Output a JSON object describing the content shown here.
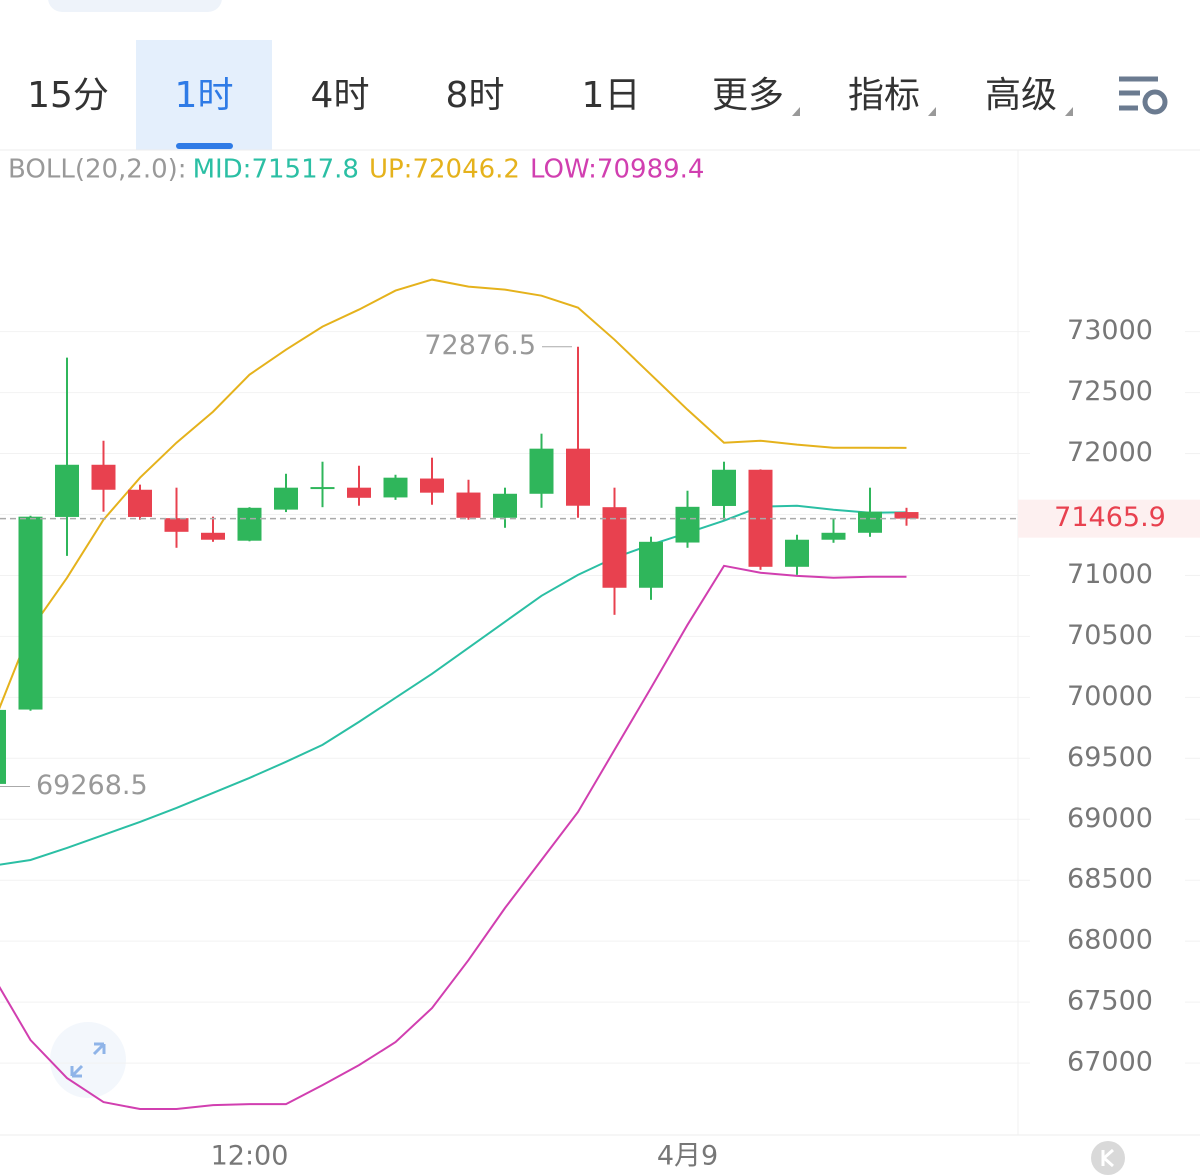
{
  "tabs": {
    "items": [
      "15分",
      "1时",
      "4时",
      "8时",
      "1日",
      "更多",
      "指标",
      "高级"
    ],
    "active": 1
  },
  "chart_data": {
    "type": "candlestick",
    "indicator": "BOLL(20,2.0):",
    "x": [
      null,
      null,
      null,
      null,
      null,
      null,
      null,
      "12:00",
      null,
      null,
      null,
      null,
      null,
      null,
      null,
      null,
      null,
      null,
      null,
      "4月9",
      null,
      null,
      null,
      null,
      null,
      null
    ],
    "open": [
      69290,
      69900,
      71480,
      71908,
      71703,
      71470,
      71350,
      71285,
      71540,
      71715,
      71720,
      71640,
      71795,
      71680,
      71473,
      71670,
      72040,
      71560,
      70899,
      71270,
      71570,
      71867,
      71071,
      71293,
      71350,
      71520
    ],
    "high": [
      69950,
      71490,
      72787,
      72105,
      71745,
      71720,
      71482,
      71560,
      71834,
      71933,
      71900,
      71826,
      71966,
      71785,
      71720,
      72163,
      72876.5,
      71720,
      71318,
      71695,
      71933,
      71870,
      71334,
      71465,
      71720,
      71555
    ],
    "low": [
      69268.5,
      69890,
      71161,
      71523,
      71457,
      71227,
      71276,
      71280,
      71520,
      71560,
      71572,
      71620,
      71580,
      71457,
      71391,
      71555,
      71473,
      70677,
      70800,
      71227,
      71457,
      71046,
      71005,
      71268,
      71317,
      71408
    ],
    "close": [
      69897,
      71482,
      71908,
      71703,
      71480,
      71358,
      71293,
      71555,
      71720,
      71725,
      71637,
      71802,
      71679,
      71473,
      71670,
      72040,
      71572,
      70899,
      71276,
      71563,
      71867,
      71071,
      71293,
      71350,
      71523,
      71465.9
    ],
    "up_color": "#2fb65b",
    "down_color": "#e8414f",
    "series": [
      {
        "name": "MID:71517.8",
        "color": "#2bbfa4",
        "values": [
          68620,
          68666,
          68765,
          68871,
          68978,
          69093,
          69216,
          69339,
          69471,
          69610,
          69799,
          69996,
          70193,
          70406,
          70620,
          70833,
          71005,
          71145,
          71252,
          71350,
          71449,
          71564,
          71572,
          71539,
          71514,
          71517.8
        ]
      },
      {
        "name": "UP:72046.2",
        "color": "#e5b21c",
        "values": [
          69800,
          70554,
          70981,
          71457,
          71802,
          72089,
          72343,
          72647,
          72852,
          73041,
          73181,
          73337,
          73427,
          73369,
          73345,
          73295,
          73197,
          72934,
          72647,
          72360,
          72089,
          72105,
          72073,
          72048,
          72048,
          72046.2
        ]
      },
      {
        "name": "LOW:70989.4",
        "color": "#d13fb0",
        "values": [
          67700,
          67189,
          66877,
          66680,
          66623,
          66623,
          66655,
          66663,
          66663,
          66819,
          66983,
          67172,
          67451,
          67845,
          68272,
          68666,
          69060,
          69569,
          70078,
          70595,
          71079,
          71022,
          70997,
          70981,
          70989,
          70989.4
        ]
      }
    ],
    "ylim": [
      66410,
      74490
    ],
    "yticks": [
      67000,
      67500,
      68000,
      68500,
      69000,
      69500,
      70000,
      70500,
      71000,
      71500,
      72000,
      72500,
      73000
    ],
    "grid": true
  }
}
